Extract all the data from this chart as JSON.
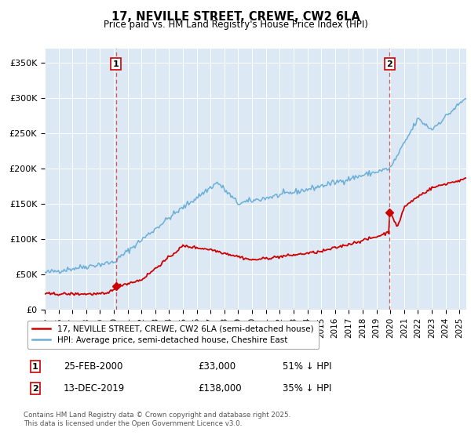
{
  "title": "17, NEVILLE STREET, CREWE, CW2 6LA",
  "subtitle": "Price paid vs. HM Land Registry's House Price Index (HPI)",
  "background_color": "#dce9f5",
  "plot_bg_color": "#dce9f5",
  "y_ticks": [
    0,
    50000,
    100000,
    150000,
    200000,
    250000,
    300000,
    350000
  ],
  "y_tick_labels": [
    "£0",
    "£50K",
    "£100K",
    "£150K",
    "£200K",
    "£250K",
    "£300K",
    "£350K"
  ],
  "x_start_year": 1995,
  "x_end_year": 2025,
  "hpi_color": "#6baed6",
  "price_color": "#cc0000",
  "vline_color": "#d45555",
  "marker_color": "#cc0000",
  "legend_label_price": "17, NEVILLE STREET, CREWE, CW2 6LA (semi-detached house)",
  "legend_label_hpi": "HPI: Average price, semi-detached house, Cheshire East",
  "annotation1_label": "1",
  "annotation1_date": "25-FEB-2000",
  "annotation1_price": "£33,000",
  "annotation1_hpi": "51% ↓ HPI",
  "annotation1_year": 2000.15,
  "annotation1_value": 33000,
  "annotation2_label": "2",
  "annotation2_date": "13-DEC-2019",
  "annotation2_price": "£138,000",
  "annotation2_hpi": "35% ↓ HPI",
  "annotation2_year": 2019.95,
  "annotation2_value": 138000,
  "footer": "Contains HM Land Registry data © Crown copyright and database right 2025.\nThis data is licensed under the Open Government Licence v3.0.",
  "ylim": [
    0,
    370000
  ],
  "xlim_start": 1995.0,
  "xlim_end": 2025.5
}
